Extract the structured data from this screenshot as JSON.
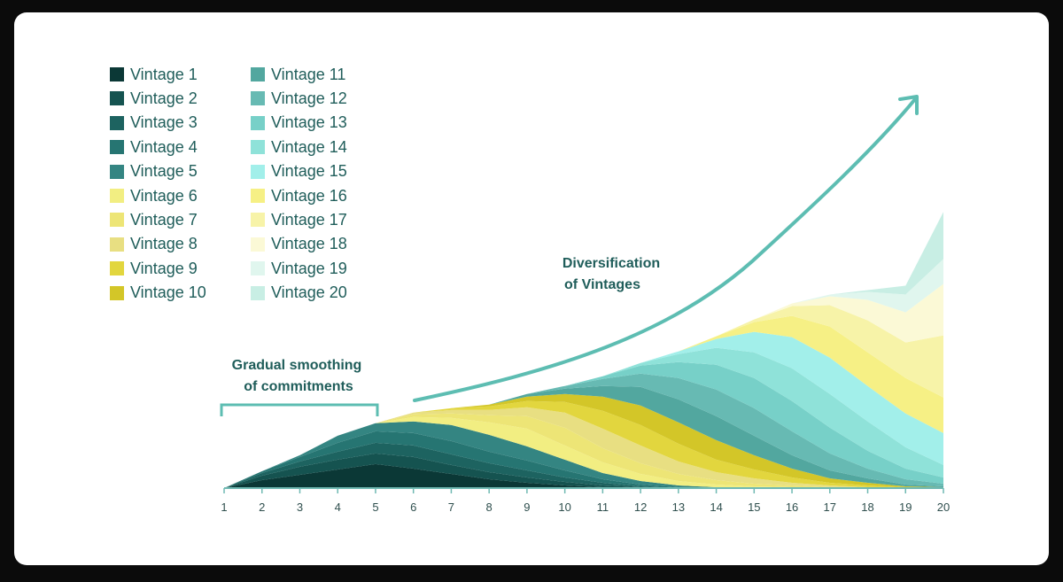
{
  "colors": {
    "background": "#0b0b0b",
    "card": "#ffffff",
    "text": "#1f5d5a",
    "annotation_line": "#5dbdb2"
  },
  "annotations": {
    "smoothing_line1": "Gradual smoothing",
    "smoothing_line2": "of commitments",
    "diversification_line1": "Diversification",
    "diversification_line2": "of Vintages"
  },
  "chart_data": {
    "type": "area",
    "stacked": true,
    "x": [
      1,
      2,
      3,
      4,
      5,
      6,
      7,
      8,
      9,
      10,
      11,
      12,
      13,
      14,
      15,
      16,
      17,
      18,
      19,
      20
    ],
    "x_ticks": [
      "1",
      "2",
      "3",
      "4",
      "5",
      "6",
      "7",
      "8",
      "9",
      "10",
      "11",
      "12",
      "13",
      "14",
      "15",
      "16",
      "17",
      "18",
      "19",
      "20"
    ],
    "title": "",
    "xlabel": "",
    "ylabel": "",
    "ylim": [
      0,
      450
    ],
    "grid": false,
    "legend_placement": "top-left",
    "series": [
      {
        "name": "Vintage 1",
        "color": "#0b3836",
        "values": [
          0,
          9,
          15,
          21,
          27,
          22,
          16,
          10,
          6,
          3,
          1,
          0,
          0,
          0,
          0,
          0,
          0,
          0,
          0,
          0
        ]
      },
      {
        "name": "Vintage 2",
        "color": "#155350",
        "values": [
          0,
          5,
          9,
          11,
          12,
          13,
          10,
          8,
          6,
          4,
          2,
          1,
          0,
          0,
          0,
          0,
          0,
          0,
          0,
          0
        ]
      },
      {
        "name": "Vintage 3",
        "color": "#1d6360",
        "values": [
          0,
          3,
          6,
          9,
          12,
          13,
          12,
          10,
          8,
          5,
          3,
          1,
          0,
          0,
          0,
          0,
          0,
          0,
          0,
          0
        ]
      },
      {
        "name": "Vintage 4",
        "color": "#267572",
        "values": [
          0,
          2,
          5,
          10,
          13,
          14,
          15,
          13,
          11,
          8,
          4,
          2,
          1,
          0,
          0,
          0,
          0,
          0,
          0,
          0
        ]
      },
      {
        "name": "Vintage 5",
        "color": "#348582",
        "values": [
          0,
          0,
          2,
          8,
          9,
          13,
          18,
          19,
          16,
          12,
          7,
          4,
          2,
          1,
          0,
          0,
          0,
          0,
          0,
          0
        ]
      },
      {
        "name": "Vintage 6",
        "color": "#f2ee82",
        "values": [
          0,
          0,
          0,
          0,
          0,
          5,
          8,
          14,
          20,
          16,
          12,
          8,
          5,
          3,
          2,
          1,
          0,
          0,
          0,
          0
        ]
      },
      {
        "name": "Vintage 7",
        "color": "#ede576",
        "values": [
          0,
          0,
          0,
          0,
          0,
          3,
          5,
          8,
          14,
          20,
          16,
          12,
          8,
          5,
          3,
          2,
          1,
          0,
          0,
          0
        ]
      },
      {
        "name": "Vintage 8",
        "color": "#e8df82",
        "values": [
          0,
          0,
          0,
          0,
          0,
          2,
          4,
          6,
          10,
          17,
          22,
          20,
          14,
          9,
          6,
          3,
          2,
          1,
          0,
          0
        ]
      },
      {
        "name": "Vintage 9",
        "color": "#e2d63e",
        "values": [
          0,
          0,
          0,
          0,
          0,
          0,
          2,
          4,
          7,
          12,
          20,
          23,
          20,
          14,
          10,
          6,
          3,
          2,
          1,
          0
        ]
      },
      {
        "name": "Vintage 10",
        "color": "#d3c628",
        "values": [
          0,
          0,
          0,
          0,
          0,
          0,
          0,
          2,
          5,
          9,
          16,
          22,
          24,
          22,
          16,
          10,
          5,
          3,
          1,
          1
        ]
      },
      {
        "name": "Vintage 11",
        "color": "#52a79f",
        "values": [
          0,
          0,
          0,
          0,
          0,
          0,
          0,
          0,
          3,
          6,
          12,
          21,
          26,
          27,
          22,
          15,
          9,
          5,
          2,
          1
        ]
      },
      {
        "name": "Vintage 12",
        "color": "#67bab3",
        "values": [
          0,
          0,
          0,
          0,
          0,
          0,
          0,
          0,
          0,
          3,
          8,
          15,
          24,
          30,
          31,
          27,
          19,
          11,
          6,
          3
        ]
      },
      {
        "name": "Vintage 13",
        "color": "#77d0c8",
        "values": [
          0,
          0,
          0,
          0,
          0,
          0,
          0,
          0,
          0,
          0,
          3,
          9,
          18,
          28,
          34,
          34,
          29,
          20,
          12,
          7
        ]
      },
      {
        "name": "Vintage 14",
        "color": "#8fe2d9",
        "values": [
          0,
          0,
          0,
          0,
          0,
          0,
          0,
          0,
          0,
          0,
          0,
          3,
          9,
          19,
          29,
          37,
          38,
          33,
          24,
          14
        ]
      },
      {
        "name": "Vintage 15",
        "color": "#a2efea",
        "values": [
          0,
          0,
          0,
          0,
          0,
          0,
          0,
          0,
          0,
          0,
          0,
          0,
          3,
          10,
          23,
          35,
          41,
          40,
          38,
          36
        ]
      },
      {
        "name": "Vintage 16",
        "color": "#f6f085",
        "values": [
          0,
          0,
          0,
          0,
          0,
          0,
          0,
          0,
          0,
          0,
          0,
          0,
          0,
          3,
          11,
          24,
          35,
          38,
          40,
          40
        ]
      },
      {
        "name": "Vintage 17",
        "color": "#f7f3a8",
        "values": [
          0,
          0,
          0,
          0,
          0,
          0,
          0,
          0,
          0,
          0,
          0,
          0,
          0,
          0,
          3,
          11,
          24,
          36,
          40,
          70
        ]
      },
      {
        "name": "Vintage 18",
        "color": "#fbf9d6",
        "values": [
          0,
          0,
          0,
          0,
          0,
          0,
          0,
          0,
          0,
          0,
          0,
          0,
          0,
          0,
          0,
          3,
          10,
          23,
          34,
          58
        ]
      },
      {
        "name": "Vintage 19",
        "color": "#e0f6ee",
        "values": [
          0,
          0,
          0,
          0,
          0,
          0,
          0,
          0,
          0,
          0,
          0,
          0,
          0,
          0,
          0,
          0,
          2,
          9,
          20,
          28
        ]
      },
      {
        "name": "Vintage 20",
        "color": "#c8eee4",
        "values": [
          0,
          0,
          0,
          0,
          0,
          0,
          0,
          0,
          0,
          0,
          0,
          0,
          0,
          0,
          0,
          0,
          0,
          2,
          10,
          53
        ]
      }
    ]
  }
}
